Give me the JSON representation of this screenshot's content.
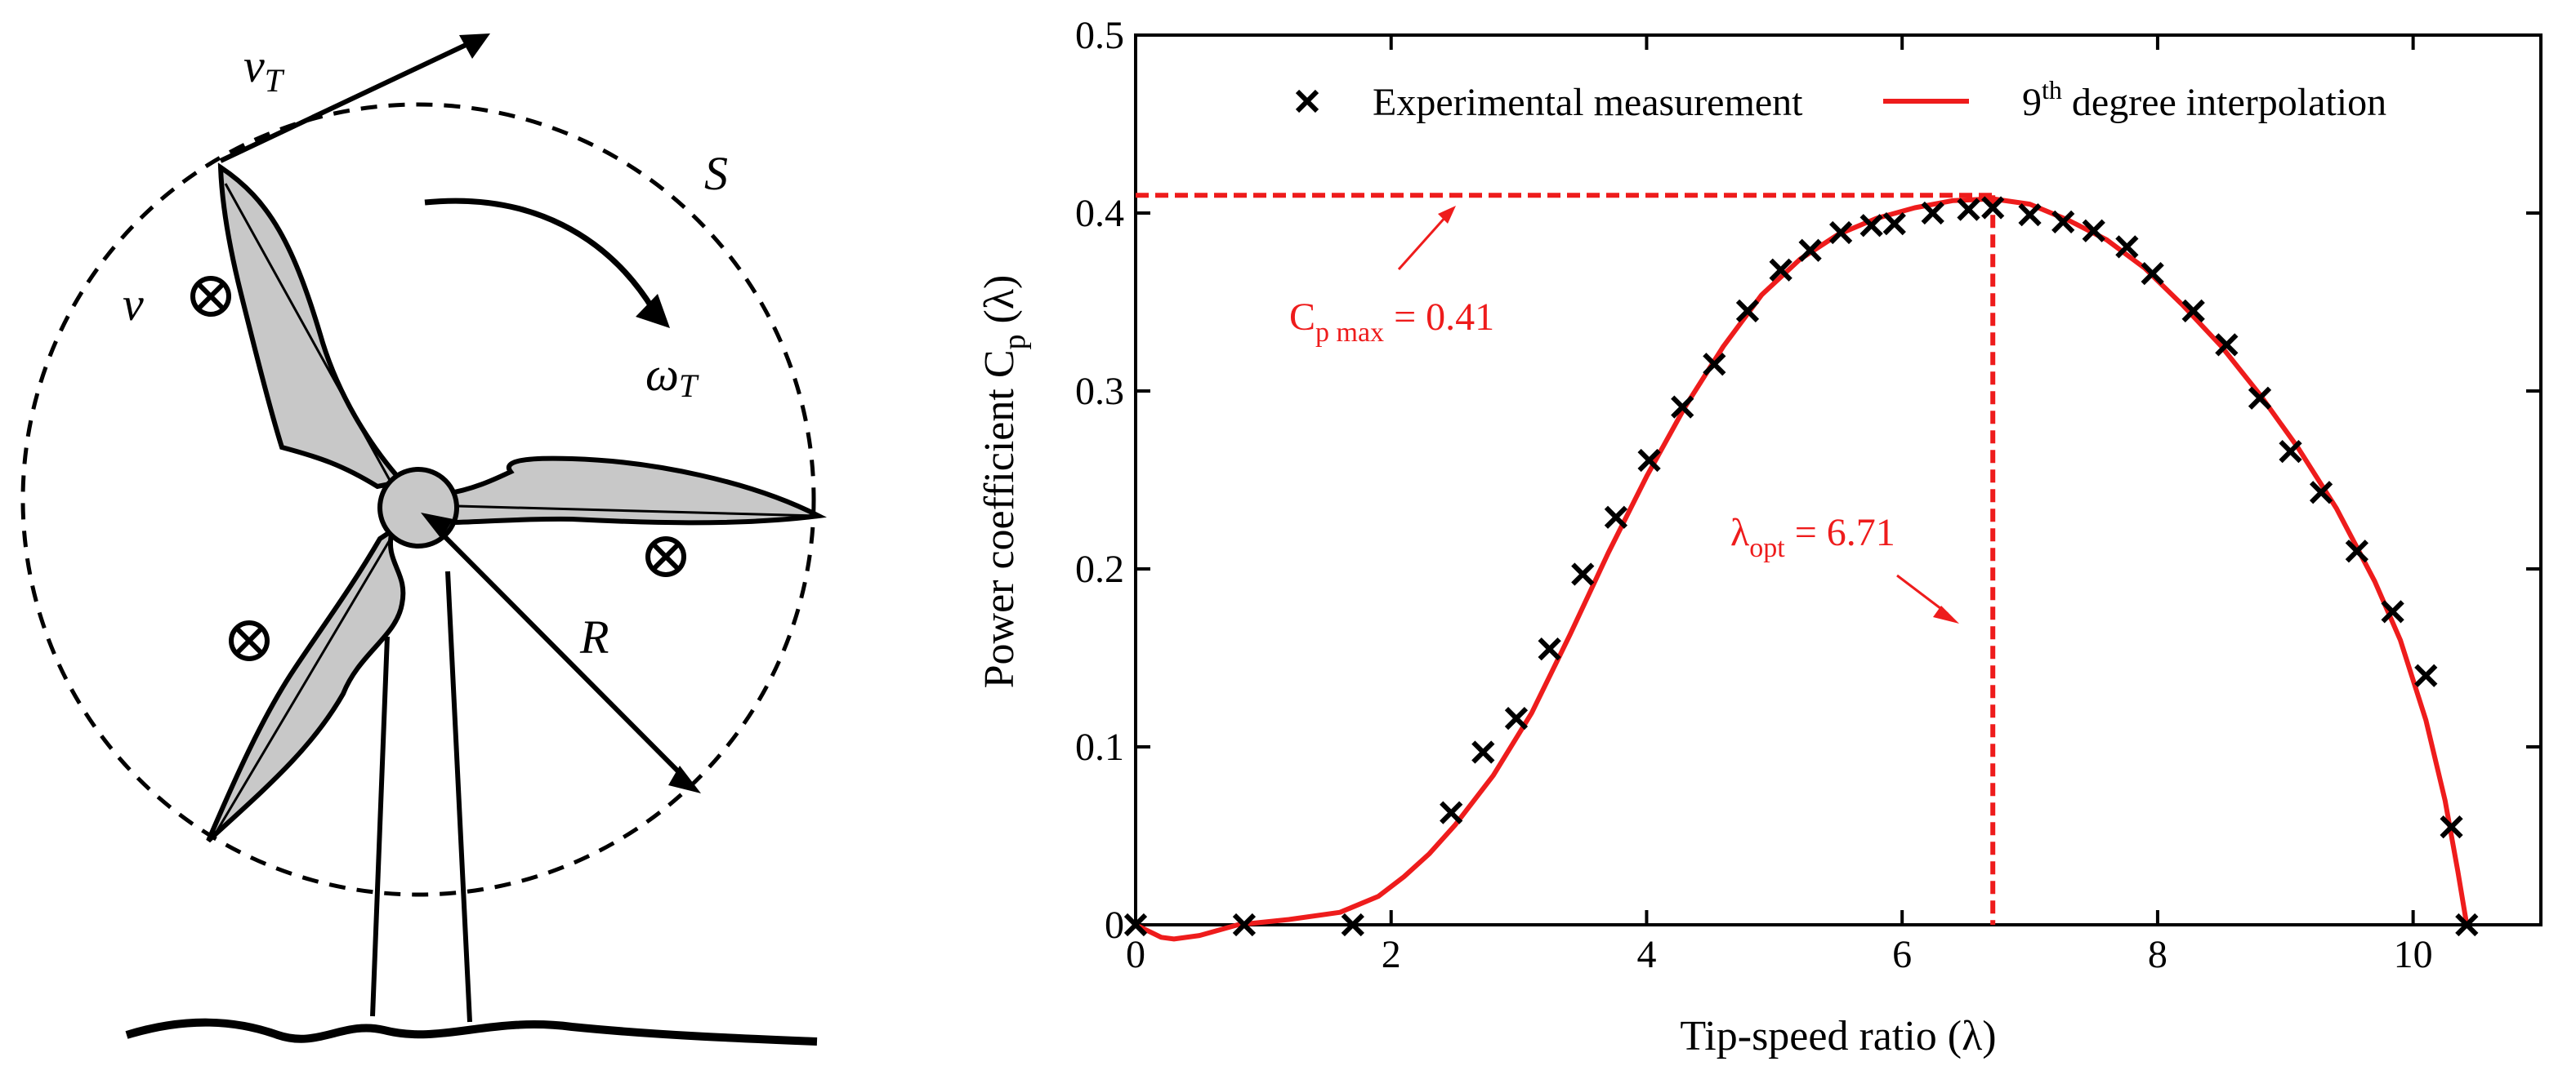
{
  "diagram": {
    "labels": {
      "tip_velocity": "v",
      "tip_velocity_sub": "T",
      "swept_area": "S",
      "wind_speed": "v",
      "rotor_speed": "ω",
      "rotor_speed_sub": "T",
      "radius": "R"
    },
    "icons": [
      "wind-into-page-icon",
      "rotation-arrow-icon",
      "tip-velocity-arrow-icon",
      "radius-arrow-icon"
    ]
  },
  "chart_data": {
    "type": "scatter",
    "xlabel": "Tip-speed ratio (λ)",
    "ylabel": {
      "main": "Power coefficient  C",
      "sub": "p",
      "tail": " (λ)"
    },
    "xlim": [
      0,
      11
    ],
    "ylim": [
      0,
      0.5
    ],
    "xticks": [
      "0",
      "2",
      "4",
      "6",
      "8",
      "10"
    ],
    "yticks": [
      "0",
      "0.1",
      "0.2",
      "0.3",
      "0.4",
      "0.5"
    ],
    "grid": false,
    "legend_position": "top",
    "legend": {
      "measurement": "Experimental measurement",
      "fit_pre": "9",
      "fit_sup": "th",
      "fit_post": " degree interpolation"
    },
    "series": [
      {
        "name": "Experimental measurement",
        "marker": "x",
        "color": "#000000",
        "x": [
          0,
          0.85,
          1.7,
          2.47,
          2.72,
          2.98,
          3.24,
          3.5,
          3.76,
          4.02,
          4.28,
          4.53,
          4.79,
          5.05,
          5.28,
          5.52,
          5.76,
          5.94,
          6.24,
          6.52,
          6.71,
          7.0,
          7.26,
          7.5,
          7.76,
          7.96,
          8.28,
          8.54,
          8.8,
          9.04,
          9.28,
          9.56,
          9.84,
          10.1,
          10.3,
          10.42
        ],
        "y": [
          0.0,
          0.0,
          0.0,
          0.063,
          0.097,
          0.116,
          0.155,
          0.197,
          0.229,
          0.261,
          0.291,
          0.315,
          0.345,
          0.368,
          0.379,
          0.389,
          0.393,
          0.394,
          0.4,
          0.402,
          0.403,
          0.399,
          0.395,
          0.39,
          0.381,
          0.366,
          0.345,
          0.326,
          0.296,
          0.266,
          0.243,
          0.21,
          0.176,
          0.14,
          0.055,
          0.0
        ]
      },
      {
        "name": "9th degree interpolation",
        "color": "#ee1c1c",
        "x": [
          0,
          0.2,
          0.3,
          0.5,
          0.8,
          1.2,
          1.6,
          1.9,
          2.1,
          2.3,
          2.5,
          2.8,
          3.1,
          3.4,
          3.7,
          4.0,
          4.3,
          4.6,
          4.9,
          5.2,
          5.5,
          5.8,
          6.1,
          6.4,
          6.71,
          7.0,
          7.3,
          7.6,
          7.9,
          8.2,
          8.5,
          8.8,
          9.1,
          9.4,
          9.7,
          9.9,
          10.1,
          10.25,
          10.35,
          10.42
        ],
        "y": [
          0.0,
          -0.007,
          -0.008,
          -0.006,
          0.0,
          0.003,
          0.007,
          0.016,
          0.027,
          0.04,
          0.056,
          0.084,
          0.119,
          0.163,
          0.209,
          0.252,
          0.291,
          0.325,
          0.354,
          0.374,
          0.388,
          0.397,
          0.403,
          0.407,
          0.408,
          0.405,
          0.396,
          0.385,
          0.369,
          0.348,
          0.325,
          0.298,
          0.268,
          0.234,
          0.193,
          0.16,
          0.115,
          0.07,
          0.03,
          0.0
        ]
      }
    ],
    "annotations": {
      "cp_max": {
        "label_main": "C",
        "label_sub": "p max",
        "label_tail": " = 0.41",
        "value": 0.41
      },
      "lambda_opt": {
        "label_main": "λ",
        "label_sub": "opt",
        "label_tail": " = 6.71",
        "value": 6.71
      }
    },
    "colors": {
      "curve": "#ee1c1c",
      "markers": "#000000",
      "blade": "#c8c8c8"
    }
  }
}
